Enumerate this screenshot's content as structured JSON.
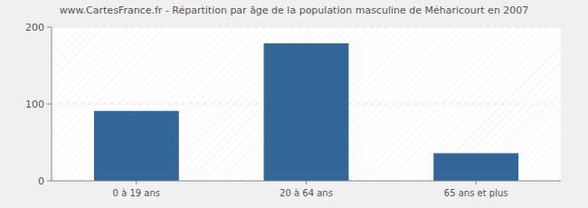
{
  "chart_data": {
    "type": "bar",
    "title": "www.CartesFrance.fr - Répartition par âge de la population masculine de Méharicourt en 2007",
    "categories": [
      "0 à 19 ans",
      "20 à 64 ans",
      "65 ans et plus"
    ],
    "values": [
      91,
      179,
      36
    ],
    "color": "#336699",
    "ylim": [
      0,
      200
    ],
    "yticks": [
      0,
      100,
      200
    ],
    "grid": true
  }
}
